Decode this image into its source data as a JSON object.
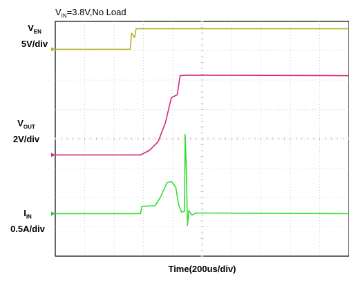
{
  "chart_data": {
    "type": "line",
    "title": {
      "main": "V",
      "sub": "IN",
      "rest": "=3.8V,No Load"
    },
    "xlabel": "Time(200us/div)",
    "grid": true,
    "divisions": {
      "x": 10,
      "y": 8
    },
    "x_unit": "div",
    "xlim": [
      0,
      10
    ],
    "ylim": [
      0,
      8
    ],
    "series": [
      {
        "label_main": "V",
        "label_sub": "EN",
        "scale": "5V/div",
        "color": "#b3b32a",
        "marker_color": "#b3b32a",
        "offset_div": 7.05,
        "points": [
          [
            0,
            0
          ],
          [
            2.55,
            0
          ],
          [
            2.6,
            0.55
          ],
          [
            2.7,
            0.4
          ],
          [
            2.75,
            0.7
          ],
          [
            3.0,
            0.7
          ],
          [
            10,
            0.7
          ]
        ]
      },
      {
        "label_main": "V",
        "label_sub": "OUT",
        "scale": "2V/div",
        "color": "#d6247a",
        "marker_color": "#e0208a",
        "offset_div": 3.45,
        "points": [
          [
            0,
            0
          ],
          [
            2.9,
            0
          ],
          [
            3.2,
            0.15
          ],
          [
            3.5,
            0.45
          ],
          [
            3.75,
            1.1
          ],
          [
            3.95,
            1.95
          ],
          [
            4.15,
            2.05
          ],
          [
            4.25,
            2.7
          ],
          [
            4.5,
            2.72
          ],
          [
            10,
            2.7
          ]
        ]
      },
      {
        "label_main": "I",
        "label_sub": "IN",
        "scale": "0.5A/div",
        "color": "#33dd33",
        "marker_color": "#22cc22",
        "offset_div": 1.45,
        "points": [
          [
            0,
            0
          ],
          [
            2.9,
            0
          ],
          [
            2.95,
            0.25
          ],
          [
            3.4,
            0.27
          ],
          [
            3.6,
            0.6
          ],
          [
            3.8,
            1.05
          ],
          [
            3.95,
            1.1
          ],
          [
            4.1,
            0.9
          ],
          [
            4.2,
            0.3
          ],
          [
            4.3,
            0.05
          ],
          [
            4.4,
            0.08
          ],
          [
            4.42,
            2.7
          ],
          [
            4.46,
            1.5
          ],
          [
            4.5,
            -0.4
          ],
          [
            4.55,
            0.1
          ],
          [
            4.65,
            -0.05
          ],
          [
            4.8,
            0.02
          ],
          [
            10,
            0
          ]
        ]
      }
    ]
  }
}
